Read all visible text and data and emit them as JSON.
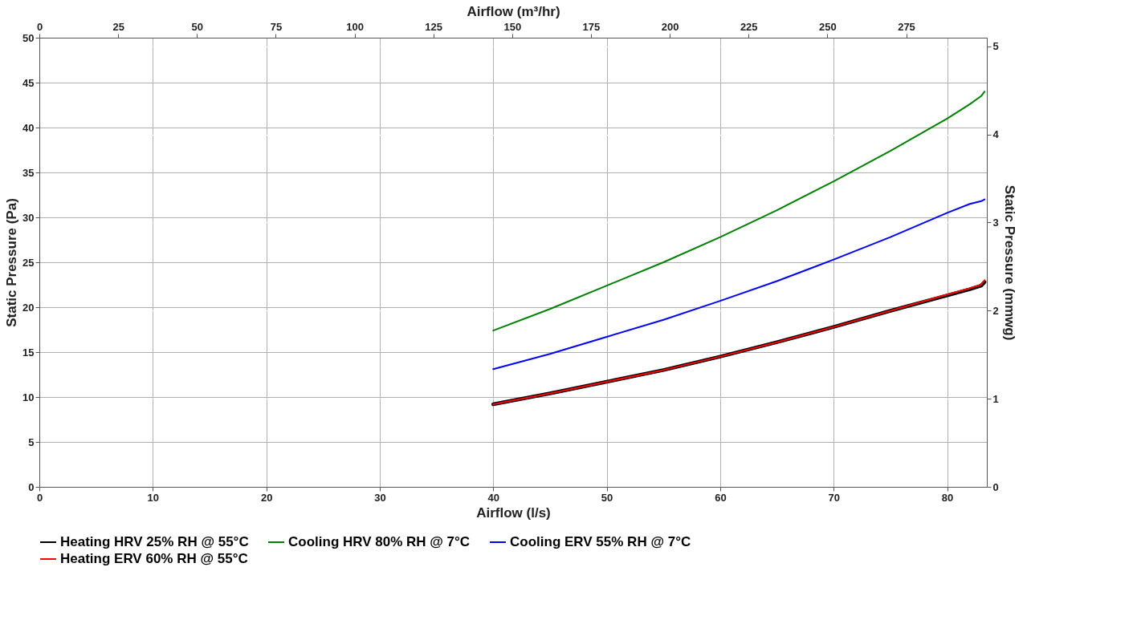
{
  "chart_data": {
    "type": "line",
    "xlabel": "Airflow (l/s)",
    "ylabel": "Static Pressure (Pa)",
    "x2label": "Airflow (m³/hr)",
    "y2label": "Static Pressure (mmwg)",
    "xlim": [
      0,
      83.5
    ],
    "xticks": [
      0,
      10,
      20,
      30,
      40,
      50,
      60,
      70,
      80
    ],
    "ylim": [
      0,
      50
    ],
    "yticks": [
      0,
      5,
      10,
      15,
      20,
      25,
      30,
      35,
      40,
      45,
      50
    ],
    "x2lim": [
      0,
      300.6
    ],
    "x2ticks": [
      0,
      25,
      50,
      75,
      100,
      125,
      150,
      175,
      200,
      225,
      250,
      275
    ],
    "y2lim": [
      0,
      5.097
    ],
    "y2ticks": [
      0,
      1,
      2,
      3,
      4,
      5
    ],
    "x": [
      40,
      45,
      50,
      55,
      60,
      65,
      70,
      75,
      80,
      82,
      83,
      83.3
    ],
    "series": [
      {
        "name": "Heating HRV 25% RH @ 55°C",
        "color": "#000000",
        "values": [
          9.2,
          10.4,
          11.7,
          13.0,
          14.5,
          16.1,
          17.8,
          19.6,
          21.3,
          22.0,
          22.4,
          22.8
        ]
      },
      {
        "name": "Cooling HRV 80% RH @ 7°C",
        "color": "#008000",
        "values": [
          17.4,
          19.8,
          22.4,
          25.0,
          27.8,
          30.8,
          34.0,
          37.4,
          41.0,
          42.6,
          43.5,
          44.0
        ]
      },
      {
        "name": "Cooling ERV 55% RH @ 7°C",
        "color": "#0000ff",
        "values": [
          13.1,
          14.8,
          16.7,
          18.6,
          20.7,
          22.9,
          25.3,
          27.8,
          30.5,
          31.5,
          31.8,
          32.0
        ]
      },
      {
        "name": "Heating ERV 60% RH @ 55°C",
        "color": "#ff0000",
        "values": [
          9.2,
          10.4,
          11.7,
          13.0,
          14.5,
          16.1,
          17.8,
          19.6,
          21.4,
          22.1,
          22.5,
          23.0
        ]
      }
    ],
    "grid": true,
    "legend": "bottom",
    "line_style": "solid",
    "marker": "none"
  }
}
